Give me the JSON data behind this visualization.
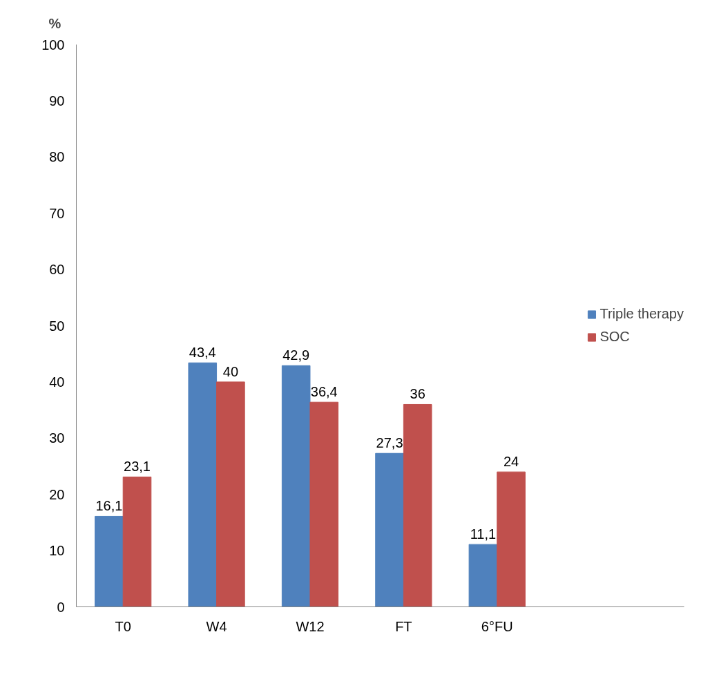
{
  "chart_data": {
    "type": "bar",
    "ylabel": "%",
    "categories": [
      "T0",
      "W4",
      "W12",
      "FT",
      "6°FU"
    ],
    "series": [
      {
        "name": "Triple therapy",
        "color": "#4f81bd",
        "values": [
          16.1,
          43.4,
          42.9,
          27.3,
          11.1
        ],
        "value_labels": [
          "16,1",
          "43,4",
          "42,9",
          "27,3",
          "11,1"
        ]
      },
      {
        "name": "SOC",
        "color": "#c0504d",
        "values": [
          23.1,
          40,
          36.4,
          36,
          24
        ],
        "value_labels": [
          "23,1",
          "40",
          "36,4",
          "36",
          "24"
        ]
      }
    ],
    "ylim": [
      0,
      100
    ],
    "yticks": [
      0,
      10,
      20,
      30,
      40,
      50,
      60,
      70,
      80,
      90,
      100
    ],
    "grid": false,
    "legend": "right"
  }
}
